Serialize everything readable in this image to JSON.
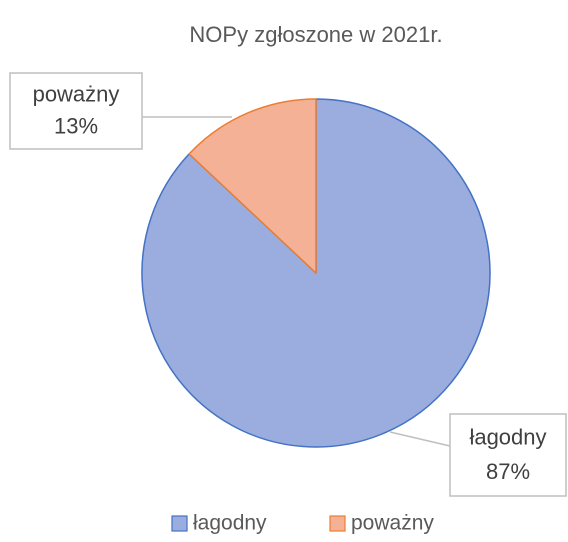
{
  "chart_data": {
    "type": "pie",
    "title": "NOPy zgłoszone w 2021r.",
    "categories": [
      "łagodny",
      "poważny"
    ],
    "values": [
      87,
      13
    ],
    "value_labels": [
      "87%",
      "13%"
    ],
    "colors": [
      "#9badde",
      "#f4b196"
    ],
    "border_colors": [
      "#4472c4",
      "#ed7d31"
    ],
    "legend": "bottom"
  }
}
